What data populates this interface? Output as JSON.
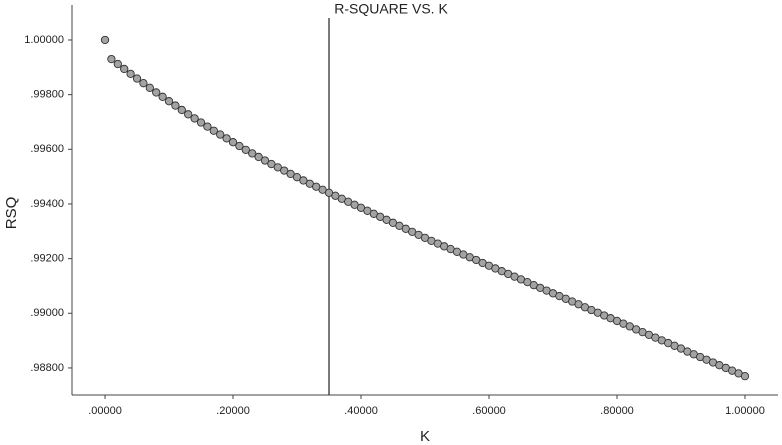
{
  "chart_data": {
    "type": "scatter",
    "title": "R-SQUARE VS. K",
    "x_label": "K",
    "y_label": "RSQ",
    "x": [
      0,
      0.01,
      0.02,
      0.03,
      0.04,
      0.05,
      0.06,
      0.07,
      0.08,
      0.09,
      0.1,
      0.11,
      0.12,
      0.13,
      0.14,
      0.15,
      0.16,
      0.17,
      0.18,
      0.19,
      0.2,
      0.21,
      0.22,
      0.23,
      0.24,
      0.25,
      0.26,
      0.27,
      0.28,
      0.29,
      0.3,
      0.31,
      0.32,
      0.33,
      0.34,
      0.35,
      0.36,
      0.37,
      0.38,
      0.39,
      0.4,
      0.41,
      0.42,
      0.43,
      0.44,
      0.45,
      0.46,
      0.47,
      0.48,
      0.49,
      0.5,
      0.51,
      0.52,
      0.53,
      0.54,
      0.55,
      0.56,
      0.57,
      0.58,
      0.59,
      0.6,
      0.61,
      0.62,
      0.63,
      0.64,
      0.65,
      0.66,
      0.67,
      0.68,
      0.69,
      0.7,
      0.71,
      0.72,
      0.73,
      0.74,
      0.75,
      0.76,
      0.77,
      0.78,
      0.79,
      0.8,
      0.81,
      0.82,
      0.83,
      0.84,
      0.85,
      0.86,
      0.87,
      0.88,
      0.89,
      0.9,
      0.91,
      0.92,
      0.93,
      0.94,
      0.95,
      0.96,
      0.97,
      0.98,
      0.99,
      1
    ],
    "values": [
      1.0,
      0.9993,
      0.99912,
      0.99894,
      0.99876,
      0.99859,
      0.99842,
      0.99825,
      0.99808,
      0.99792,
      0.99776,
      0.9976,
      0.99744,
      0.99728,
      0.99713,
      0.99698,
      0.99683,
      0.99668,
      0.99654,
      0.9964,
      0.99626,
      0.99612,
      0.99598,
      0.99585,
      0.99572,
      0.99559,
      0.99546,
      0.99534,
      0.99522,
      0.9951,
      0.99498,
      0.99486,
      0.99474,
      0.99463,
      0.99452,
      0.99441,
      0.9943,
      0.99419,
      0.99408,
      0.99397,
      0.99386,
      0.99375,
      0.99364,
      0.99353,
      0.99342,
      0.99331,
      0.9932,
      0.99309,
      0.99298,
      0.99287,
      0.99276,
      0.99265,
      0.99255,
      0.99245,
      0.99235,
      0.99225,
      0.99215,
      0.99205,
      0.99195,
      0.99184,
      0.99174,
      0.99164,
      0.99154,
      0.99144,
      0.99134,
      0.99124,
      0.99114,
      0.99103,
      0.99093,
      0.99083,
      0.99073,
      0.99063,
      0.99053,
      0.99043,
      0.99033,
      0.99022,
      0.99012,
      0.99002,
      0.98992,
      0.98982,
      0.98972,
      0.98962,
      0.98952,
      0.98941,
      0.98931,
      0.98921,
      0.98911,
      0.98901,
      0.98891,
      0.98881,
      0.98871,
      0.9886,
      0.9885,
      0.9884,
      0.9883,
      0.9882,
      0.9881,
      0.988,
      0.9879,
      0.9878,
      0.9877
    ],
    "color": "#a3a3a3",
    "xlim": [
      -0.0516,
      1.0516
    ],
    "xticks": [
      {
        "value": 0,
        "label": ".00000"
      },
      {
        "value": 0.2,
        "label": ".20000"
      },
      {
        "value": 0.4,
        "label": ".40000"
      },
      {
        "value": 0.6,
        "label": ".60000"
      },
      {
        "value": 0.8,
        "label": ".80000"
      },
      {
        "value": 1,
        "label": "1.00000"
      }
    ],
    "ylim": [
      0.98701,
      1.00128
    ],
    "yticks": [
      {
        "value": 0.988,
        "label": ".98800"
      },
      {
        "value": 0.99,
        "label": ".99000"
      },
      {
        "value": 0.992,
        "label": ".99200"
      },
      {
        "value": 0.994,
        "label": ".99400"
      },
      {
        "value": 0.996,
        "label": ".99600"
      },
      {
        "value": 0.998,
        "label": ".99800"
      },
      {
        "value": 1,
        "label": "1.00000"
      }
    ],
    "vline": 0.35,
    "grid": false
  }
}
